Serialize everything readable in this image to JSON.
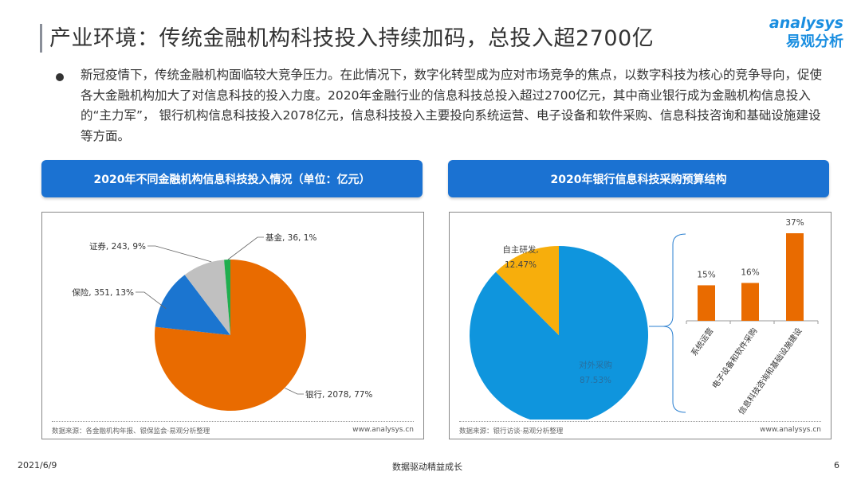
{
  "header": {
    "title": "产业环境：传统金融机构科技投入持续加码，总投入超2700亿",
    "logo_en": "analysys",
    "logo_cn": "易观分析"
  },
  "body": {
    "paragraph": "新冠疫情下，传统金融机构面临较大竞争压力。在此情况下，数字化转型成为应对市场竞争的焦点，以数字科技为核心的竞争导向，促使各大金融机构加大了对信息科技的投入力度。2020年金融行业的信息科技总投入超过2700亿元，其中商业银行成为金融机构信息投入的“主力军”， 银行机构信息科技投入2078亿元，信息科技投入主要投向系统运营、电子设备和软件采购、信息科技咨询和基础设施建设等方面。"
  },
  "left_panel": {
    "header": "2020年不同金融机构信息科技投入情况（单位：亿元）",
    "source": "数据来源：各金融机构年报、银保监会·易观分析整理",
    "url": "www.analysys.cn"
  },
  "right_panel": {
    "header": "2020年银行信息科技采购预算结构",
    "source": "数据来源：银行访谈·易观分析整理",
    "url": "www.analysys.cn"
  },
  "chart_data": [
    {
      "type": "pie",
      "start": "top",
      "direction": "clockwise",
      "slices": [
        {
          "name": "银行",
          "value": 2078,
          "percent": "77%",
          "label": "银行, 2078, 77%",
          "color": "#e96b00"
        },
        {
          "name": "保险",
          "value": 351,
          "percent": "13%",
          "label": "保险, 351, 13%",
          "color": "#1b75d0"
        },
        {
          "name": "证券",
          "value": 243,
          "percent": "9%",
          "label": "证券, 243, 9%",
          "color": "#c0c0c0"
        },
        {
          "name": "基金",
          "value": 36,
          "percent": "1%",
          "label": "基金, 36, 1%",
          "color": "#1fae4f"
        }
      ]
    },
    {
      "type": "pie",
      "start": "top",
      "direction": "clockwise",
      "slices": [
        {
          "name": "对外采购",
          "value": 87.53,
          "label_name": "对外采购",
          "label_value": "87.53%",
          "color": "#0f95dd"
        },
        {
          "name": "自主研发",
          "value": 12.47,
          "label_name": "自主研发,",
          "label_value": "12.47%",
          "color": "#f7ae0c"
        }
      ]
    },
    {
      "type": "bar",
      "color": "#e96b00",
      "categories": [
        "系统运营",
        "电子设备和软件采购",
        "信息科技咨询和基础设施建设"
      ],
      "values": [
        15,
        16,
        37
      ],
      "labels": [
        "15%",
        "16%",
        "37%"
      ]
    }
  ],
  "footer": {
    "date": "2021/6/9",
    "slogan": "数据驱动精益成长",
    "page": "6"
  }
}
